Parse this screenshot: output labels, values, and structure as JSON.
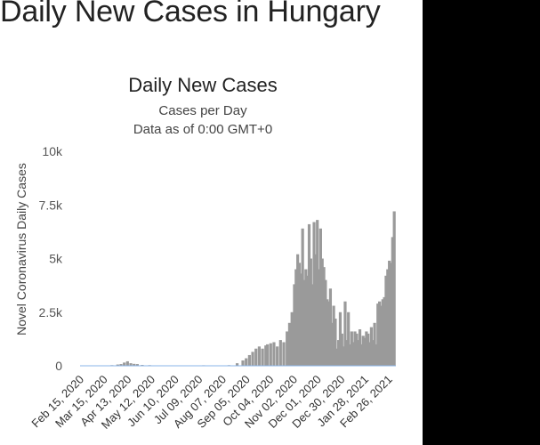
{
  "page": {
    "title": "Daily New Cases in Hungary"
  },
  "colors": {
    "bar": "#9a9a9a",
    "baseline": "#8ab4e8",
    "text": "#333333",
    "page_bg": "#ffffff",
    "side_bg": "#000000"
  },
  "chart_data": {
    "type": "bar",
    "title": "Daily New Cases",
    "subtitle": "Cases per Day",
    "subtitle2": "Data as of 0:00 GMT+0",
    "xlabel": "",
    "ylabel": "Novel Coronavirus Daily Cases",
    "ylim": [
      0,
      10000
    ],
    "yticks": [
      0,
      2500,
      5000,
      7500,
      10000
    ],
    "ytick_labels": [
      "0",
      "2.5k",
      "5k",
      "7.5k",
      "10k"
    ],
    "grid": false,
    "x_start": "2020-02-15",
    "x_end": "2021-03-07",
    "xtick_labels": [
      "Feb 15, 2020",
      "Mar 15, 2020",
      "Apr 13, 2020",
      "May 12, 2020",
      "Jun 10, 2020",
      "Jul 09, 2020",
      "Aug 07, 2020",
      "Sep 05, 2020",
      "Oct 04, 2020",
      "Nov 02, 2020",
      "Dec 01, 2020",
      "Dec 30, 2020",
      "Jan 28, 2021",
      "Feb 26, 2021"
    ],
    "xtick_dates": [
      "2020-02-15",
      "2020-03-15",
      "2020-04-13",
      "2020-05-12",
      "2020-06-10",
      "2020-07-09",
      "2020-08-07",
      "2020-09-05",
      "2020-10-04",
      "2020-11-02",
      "2020-12-01",
      "2020-12-30",
      "2021-01-28",
      "2021-02-26"
    ],
    "series": [
      {
        "x": [
          "2020-03-25",
          "2020-04-01",
          "2020-04-05",
          "2020-04-09",
          "2020-04-13",
          "2020-04-17",
          "2020-04-21",
          "2020-04-25",
          "2020-05-01",
          "2020-05-10",
          "2020-05-20",
          "2020-06-01",
          "2020-06-15",
          "2020-07-01",
          "2020-07-15",
          "2020-08-01",
          "2020-08-15",
          "2020-08-25",
          "2020-09-01",
          "2020-09-05",
          "2020-09-09",
          "2020-09-13",
          "2020-09-17",
          "2020-09-21",
          "2020-09-25",
          "2020-09-29",
          "2020-10-01",
          "2020-10-05",
          "2020-10-09",
          "2020-10-13",
          "2020-10-17",
          "2020-10-21",
          "2020-10-25",
          "2020-10-28",
          "2020-10-31",
          "2020-11-03",
          "2020-11-05",
          "2020-11-07",
          "2020-11-09",
          "2020-11-11",
          "2020-11-13",
          "2020-11-15",
          "2020-11-17",
          "2020-11-19",
          "2020-11-21",
          "2020-11-23",
          "2020-11-25",
          "2020-11-27",
          "2020-11-29",
          "2020-12-01",
          "2020-12-03",
          "2020-12-05",
          "2020-12-07",
          "2020-12-09",
          "2020-12-11",
          "2020-12-13",
          "2020-12-15",
          "2020-12-17",
          "2020-12-19",
          "2020-12-21",
          "2020-12-23",
          "2020-12-25",
          "2020-12-27",
          "2020-12-29",
          "2020-12-31",
          "2021-01-02",
          "2021-01-04",
          "2021-01-06",
          "2021-01-08",
          "2021-01-10",
          "2021-01-12",
          "2021-01-14",
          "2021-01-16",
          "2021-01-18",
          "2021-01-20",
          "2021-01-22",
          "2021-01-24",
          "2021-01-26",
          "2021-01-28",
          "2021-01-30",
          "2021-02-01",
          "2021-02-03",
          "2021-02-05",
          "2021-02-07",
          "2021-02-09",
          "2021-02-11",
          "2021-02-13",
          "2021-02-15",
          "2021-02-17",
          "2021-02-19",
          "2021-02-21",
          "2021-02-23",
          "2021-02-25",
          "2021-02-27",
          "2021-03-01",
          "2021-03-03",
          "2021-03-05"
        ],
        "values": [
          30,
          60,
          80,
          150,
          210,
          120,
          90,
          80,
          40,
          30,
          20,
          15,
          15,
          20,
          25,
          20,
          30,
          120,
          250,
          350,
          500,
          650,
          800,
          900,
          800,
          950,
          1000,
          1050,
          1100,
          900,
          1200,
          1100,
          1600,
          2000,
          2500,
          3800,
          4500,
          5200,
          4800,
          4300,
          6400,
          4000,
          4500,
          4200,
          6600,
          5000,
          3800,
          6700,
          5200,
          6800,
          4500,
          6400,
          5000,
          4600,
          4000,
          3100,
          3000,
          3600,
          2000,
          2800,
          2200,
          800,
          1200,
          2500,
          1500,
          900,
          3000,
          1200,
          2500,
          1000,
          1600,
          1100,
          1600,
          1500,
          1200,
          1700,
          1000,
          1400,
          1300,
          1600,
          1500,
          1100,
          1800,
          1200,
          2000,
          1000,
          2900,
          3000,
          2800,
          3100,
          3200,
          4200,
          4500,
          4900,
          4800,
          6000,
          7200
        ]
      }
    ]
  }
}
